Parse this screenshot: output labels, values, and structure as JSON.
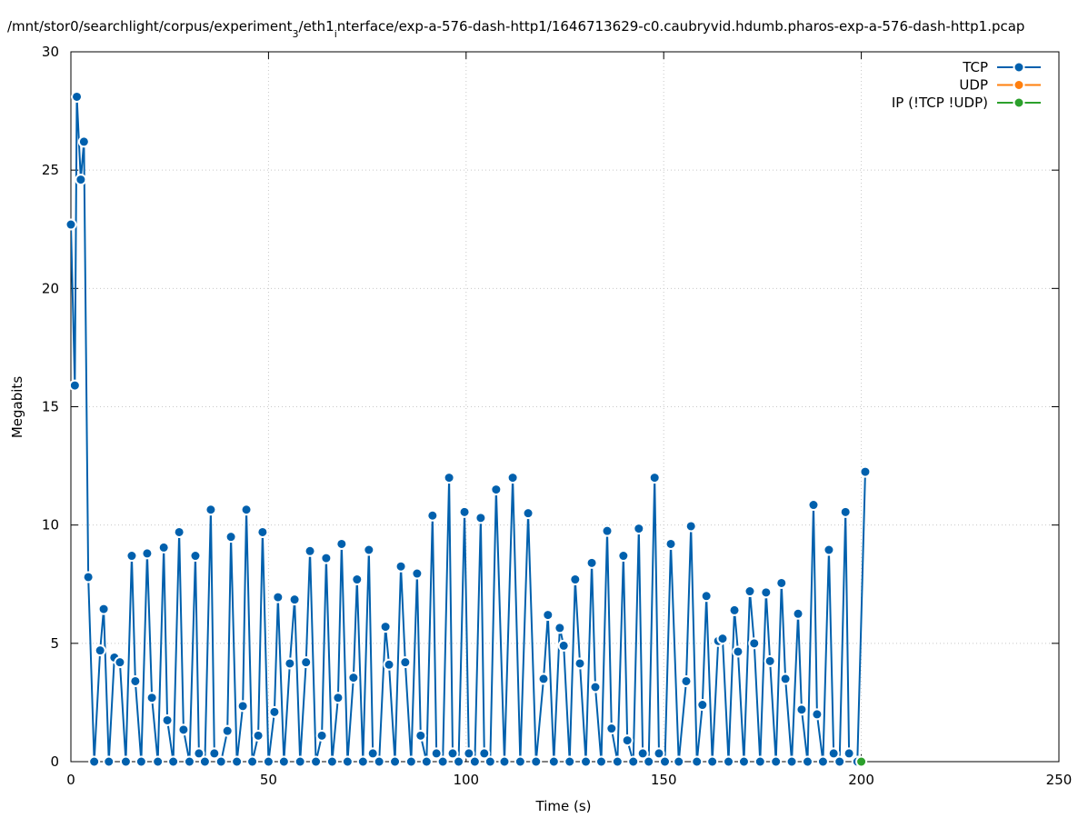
{
  "chart_data": {
    "type": "line",
    "title_parts": [
      {
        "text": "/mnt/stor0/searchlight/corpus/experiment",
        "sub": false
      },
      {
        "text": "3",
        "sub": true
      },
      {
        "text": "/eth1",
        "sub": false
      },
      {
        "text": "i",
        "sub": true
      },
      {
        "text": "nterface/exp-a-576-dash-http1/1646713629-c0.caubryvid.hdumb.pharos-exp-a-576-dash-http1.pcap",
        "sub": false
      }
    ],
    "x_label": "Time (s)",
    "y_label": "Megabits",
    "xlim": [
      0,
      250
    ],
    "xticks": [
      0,
      50,
      100,
      150,
      200,
      250
    ],
    "ylim": [
      0,
      30
    ],
    "yticks": [
      0,
      5,
      10,
      15,
      20,
      25,
      30
    ],
    "grid": true,
    "legend": "upper-right",
    "series": [
      {
        "name": "TCP",
        "color": "#0060ad",
        "x": [
          0,
          1,
          1.5,
          2.5,
          3.3,
          4.4,
          5.9,
          7.4,
          8.3,
          9.6,
          11,
          12.4,
          13.9,
          15.4,
          16.3,
          17.8,
          19.3,
          20.5,
          22,
          23.5,
          24.4,
          25.9,
          27.4,
          28.5,
          30,
          31.5,
          32.4,
          33.9,
          35.4,
          36.3,
          38,
          39.6,
          40.5,
          42,
          43.5,
          44.4,
          45.9,
          47.4,
          48.5,
          50,
          51.5,
          52.4,
          53.9,
          55.4,
          56.6,
          58,
          59.5,
          60.5,
          62,
          63.5,
          64.6,
          66.1,
          67.6,
          68.5,
          70,
          71.5,
          72.4,
          73.9,
          75.4,
          76.4,
          78,
          79.6,
          80.5,
          82,
          83.5,
          84.6,
          86.1,
          87.6,
          88.5,
          90,
          91.5,
          92.5,
          94.1,
          95.7,
          96.6,
          98.1,
          99.6,
          100.7,
          102.2,
          103.7,
          104.6,
          106.1,
          107.6,
          109.7,
          111.8,
          113.7,
          115.7,
          117.7,
          119.6,
          120.7,
          122.2,
          123.7,
          124.7,
          126.2,
          127.6,
          128.8,
          130.3,
          131.8,
          132.7,
          134.2,
          135.7,
          136.8,
          138.3,
          139.8,
          140.8,
          142.3,
          143.7,
          144.7,
          146.2,
          147.7,
          148.8,
          150.3,
          151.8,
          153.8,
          155.7,
          156.9,
          158.4,
          159.8,
          160.8,
          162.3,
          163.8,
          164.9,
          166.4,
          167.9,
          168.8,
          170.3,
          171.8,
          172.9,
          174.4,
          175.9,
          176.9,
          178.4,
          179.8,
          180.8,
          182.4,
          184,
          184.9,
          186.4,
          187.9,
          188.8,
          190.3,
          191.8,
          193,
          194.5,
          196,
          196.9,
          199,
          201
        ],
        "values": [
          22.7,
          15.9,
          28.1,
          24.6,
          26.2,
          7.8,
          0,
          4.7,
          6.45,
          0,
          4.4,
          4.2,
          0,
          8.7,
          3.4,
          0,
          8.8,
          2.7,
          0,
          9.05,
          1.75,
          0,
          9.7,
          1.35,
          0,
          8.7,
          0.35,
          0,
          10.65,
          0.35,
          0,
          1.3,
          9.5,
          0,
          2.35,
          10.65,
          0,
          1.1,
          9.7,
          0,
          2.1,
          6.95,
          0,
          4.15,
          6.85,
          0,
          4.2,
          8.9,
          0,
          1.1,
          8.6,
          0,
          2.7,
          9.2,
          0,
          3.55,
          7.7,
          0,
          8.95,
          0.35,
          0,
          5.7,
          4.1,
          0,
          8.25,
          4.2,
          0,
          7.95,
          1.1,
          0,
          10.4,
          0.35,
          0,
          12,
          0.35,
          0,
          10.55,
          0.35,
          0,
          10.3,
          0.35,
          0,
          11.5,
          0,
          12,
          0,
          10.5,
          0,
          3.5,
          6.2,
          0,
          5.65,
          4.9,
          0,
          7.7,
          4.15,
          0,
          8.4,
          3.15,
          0,
          9.75,
          1.4,
          0,
          8.7,
          0.9,
          0,
          9.85,
          0.35,
          0,
          12,
          0.35,
          0,
          9.2,
          0,
          3.4,
          9.95,
          0,
          2.4,
          7,
          0,
          5.1,
          5.2,
          0,
          6.4,
          4.65,
          0,
          7.2,
          5,
          0,
          7.15,
          4.25,
          0,
          7.55,
          3.5,
          0,
          6.25,
          2.2,
          0,
          10.85,
          2,
          0,
          8.95,
          0.35,
          0,
          10.55,
          0.35,
          0,
          12.25
        ]
      },
      {
        "name": "UDP",
        "color": "#ff7f0e",
        "x": [],
        "values": []
      },
      {
        "name": "IP (!TCP  !UDP)",
        "color": "#2ca02c",
        "x": [
          200
        ],
        "values": [
          0
        ]
      }
    ]
  }
}
